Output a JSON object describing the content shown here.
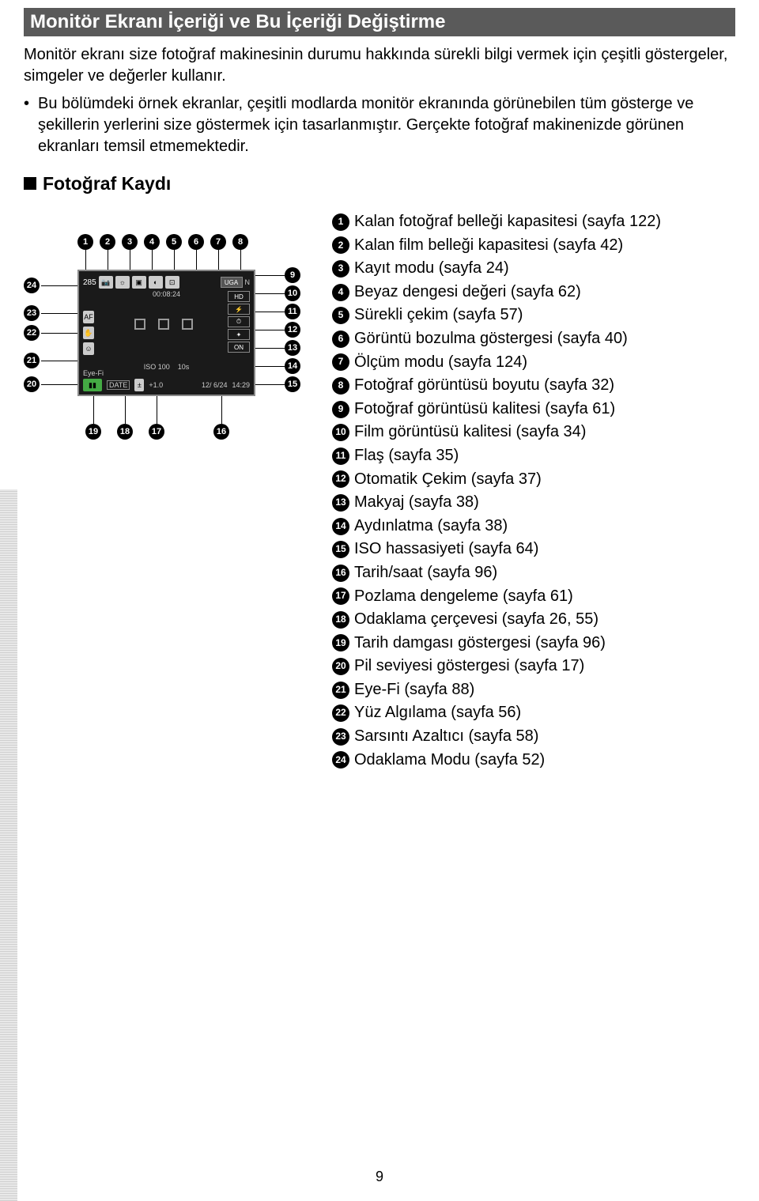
{
  "header": "Monitör Ekranı İçeriği ve Bu İçeriği Değiştirme",
  "intro": "Monitör ekranı size fotoğraf makinesinin durumu hakkında sürekli bilgi vermek için çeşitli göstergeler, simgeler ve değerler kullanır.",
  "bullet": "Bu bölümdeki örnek ekranlar, çeşitli modlarda monitör ekranında görünebilen tüm gösterge ve şekillerin yerlerini size göstermek için tasarlanmıştır. Gerçekte fotoğraf makinenizde görünen ekranları temsil etmemektedir.",
  "section_title": "Fotoğraf Kaydı",
  "page_number": "9",
  "legend": [
    {
      "n": "1",
      "t": "Kalan fotoğraf belleği kapasitesi (sayfa 122)"
    },
    {
      "n": "2",
      "t": "Kalan film belleği kapasitesi (sayfa 42)"
    },
    {
      "n": "3",
      "t": "Kayıt modu (sayfa 24)"
    },
    {
      "n": "4",
      "t": "Beyaz dengesi değeri (sayfa 62)"
    },
    {
      "n": "5",
      "t": "Sürekli çekim (sayfa 57)"
    },
    {
      "n": "6",
      "t": "Görüntü bozulma göstergesi (sayfa 40)"
    },
    {
      "n": "7",
      "t": "Ölçüm modu (sayfa 124)"
    },
    {
      "n": "8",
      "t": "Fotoğraf görüntüsü boyutu (sayfa 32)"
    },
    {
      "n": "9",
      "t": "Fotoğraf görüntüsü kalitesi (sayfa 61)"
    },
    {
      "n": "10",
      "t": "Film görüntüsü kalitesi (sayfa 34)"
    },
    {
      "n": "11",
      "t": "Flaş (sayfa 35)"
    },
    {
      "n": "12",
      "t": "Otomatik Çekim (sayfa 37)"
    },
    {
      "n": "13",
      "t": "Makyaj (sayfa 38)"
    },
    {
      "n": "14",
      "t": "Aydınlatma (sayfa 38)"
    },
    {
      "n": "15",
      "t": "ISO hassasiyeti (sayfa 64)"
    },
    {
      "n": "16",
      "t": "Tarih/saat (sayfa 96)"
    },
    {
      "n": "17",
      "t": "Pozlama dengeleme (sayfa 61)"
    },
    {
      "n": "18",
      "t": "Odaklama çerçevesi (sayfa 26, 55)"
    },
    {
      "n": "19",
      "t": "Tarih damgası göstergesi (sayfa 96)"
    },
    {
      "n": "20",
      "t": "Pil seviyesi göstergesi (sayfa 17)"
    },
    {
      "n": "21",
      "t": "Eye-Fi (sayfa 88)"
    },
    {
      "n": "22",
      "t": "Yüz Algılama (sayfa 56)"
    },
    {
      "n": "23",
      "t": "Sarsıntı Azaltıcı (sayfa 58)"
    },
    {
      "n": "24",
      "t": "Odaklama Modu (sayfa 52)"
    }
  ],
  "diagram": {
    "top_labels": [
      "1",
      "2",
      "3",
      "4",
      "5",
      "6",
      "7",
      "8"
    ],
    "right_labels": [
      "9",
      "10",
      "11",
      "12",
      "13",
      "14",
      "15"
    ],
    "bottom_labels": [
      "19",
      "18",
      "17",
      "16"
    ],
    "left_labels": [
      "24",
      "23",
      "22",
      "21",
      "20"
    ],
    "cam": {
      "count": "285",
      "time": "00:08:24",
      "iso": "ISO 100",
      "shots": "10s",
      "ev": "+1.0",
      "date": "12/ 6/24",
      "clock": "14:29",
      "quality_n": "N",
      "badges": [
        "UGA",
        "HD",
        "⚡",
        "⏱",
        "✦",
        "ON"
      ]
    }
  }
}
